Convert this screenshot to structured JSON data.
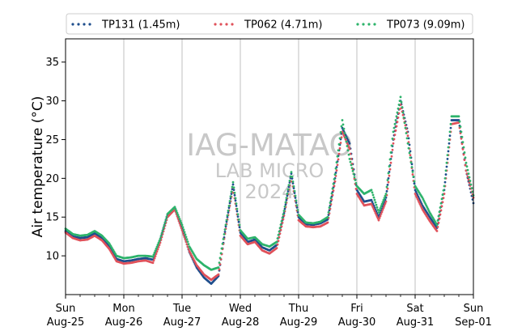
{
  "chart_data": {
    "type": "scatter",
    "xlabel": "",
    "ylabel": "Air temperature (°C)",
    "ylim": [
      5,
      38
    ],
    "xlim": [
      "2024-08-25",
      "2024-09-01"
    ],
    "x_ticks": [
      {
        "day": "Sun",
        "date": "Aug-25"
      },
      {
        "day": "Mon",
        "date": "Aug-26"
      },
      {
        "day": "Tue",
        "date": "Aug-27"
      },
      {
        "day": "Wed",
        "date": "Aug-28"
      },
      {
        "day": "Thu",
        "date": "Aug-29"
      },
      {
        "day": "Fri",
        "date": "Aug-30"
      },
      {
        "day": "Sat",
        "date": "Aug-31"
      },
      {
        "day": "Sun",
        "date": "Sep-01"
      }
    ],
    "y_ticks": [
      10,
      15,
      20,
      25,
      30,
      35
    ],
    "grid": "vertical",
    "legend_position": "top",
    "watermark": [
      "IAG-MATAO",
      "LAB MICRO",
      "2024"
    ],
    "series": [
      {
        "name": "TP131 (1.45m)",
        "color": "#1f4e8c",
        "points": [
          [
            "2024-08-25 00:00",
            13.2
          ],
          [
            "2024-08-25 03:00",
            12.5
          ],
          [
            "2024-08-25 06:00",
            12.3
          ],
          [
            "2024-08-25 09:00",
            12.4
          ],
          [
            "2024-08-25 12:00",
            12.9
          ],
          [
            "2024-08-25 15:00",
            12.3
          ],
          [
            "2024-08-25 18:00",
            11.2
          ],
          [
            "2024-08-25 21:00",
            9.6
          ],
          [
            "2024-08-26 00:00",
            9.3
          ],
          [
            "2024-08-26 03:00",
            9.4
          ],
          [
            "2024-08-26 06:00",
            9.6
          ],
          [
            "2024-08-26 09:00",
            9.7
          ],
          [
            "2024-08-26 12:00",
            9.5
          ],
          [
            "2024-08-26 15:00",
            12.0
          ],
          [
            "2024-08-26 18:00",
            15.3
          ],
          [
            "2024-08-26 21:00",
            16.2
          ],
          [
            "2024-08-27 00:00",
            13.5
          ],
          [
            "2024-08-27 03:00",
            10.5
          ],
          [
            "2024-08-27 06:00",
            8.5
          ],
          [
            "2024-08-27 09:00",
            7.2
          ],
          [
            "2024-08-27 12:00",
            6.4
          ],
          [
            "2024-08-27 15:00",
            7.4
          ],
          [
            "2024-08-27 18:00",
            13.8
          ],
          [
            "2024-08-27 21:00",
            19.2
          ],
          [
            "2024-08-28 00:00",
            13.0
          ],
          [
            "2024-08-28 03:00",
            11.8
          ],
          [
            "2024-08-28 06:00",
            12.1
          ],
          [
            "2024-08-28 09:00",
            11.1
          ],
          [
            "2024-08-28 12:00",
            10.7
          ],
          [
            "2024-08-28 15:00",
            11.4
          ],
          [
            "2024-08-28 18:00",
            15.5
          ],
          [
            "2024-08-28 21:00",
            20.6
          ],
          [
            "2024-08-29 00:00",
            15.0
          ],
          [
            "2024-08-29 03:00",
            14.1
          ],
          [
            "2024-08-29 06:00",
            14.0
          ],
          [
            "2024-08-29 09:00",
            14.2
          ],
          [
            "2024-08-29 12:00",
            14.7
          ],
          [
            "2024-08-29 15:00",
            20.0
          ],
          [
            "2024-08-29 18:00",
            26.5
          ],
          [
            "2024-08-29 21:00",
            24.5
          ],
          [
            "2024-08-30 00:00",
            18.5
          ],
          [
            "2024-08-30 03:00",
            17.0
          ],
          [
            "2024-08-30 06:00",
            17.2
          ],
          [
            "2024-08-30 09:00",
            15.0
          ],
          [
            "2024-08-30 12:00",
            17.5
          ],
          [
            "2024-08-30 15:00",
            25.0
          ],
          [
            "2024-08-30 18:00",
            30.0
          ],
          [
            "2024-08-30 21:00",
            26.0
          ],
          [
            "2024-08-31 00:00",
            18.5
          ],
          [
            "2024-08-31 03:00",
            16.5
          ],
          [
            "2024-08-31 06:00",
            15.0
          ],
          [
            "2024-08-31 09:00",
            13.6
          ],
          [
            "2024-08-31 12:00",
            18.5
          ],
          [
            "2024-08-31 15:00",
            27.5
          ],
          [
            "2024-08-31 18:00",
            27.5
          ],
          [
            "2024-08-31 21:00",
            21.0
          ],
          [
            "2024-09-01 00:00",
            16.8
          ]
        ]
      },
      {
        "name": "TP062 (4.71m)",
        "color": "#e0515a",
        "points": [
          [
            "2024-08-25 00:00",
            13.0
          ],
          [
            "2024-08-25 03:00",
            12.3
          ],
          [
            "2024-08-25 06:00",
            12.0
          ],
          [
            "2024-08-25 09:00",
            12.1
          ],
          [
            "2024-08-25 12:00",
            12.6
          ],
          [
            "2024-08-25 15:00",
            12.0
          ],
          [
            "2024-08-25 18:00",
            10.9
          ],
          [
            "2024-08-25 21:00",
            9.3
          ],
          [
            "2024-08-26 00:00",
            9.0
          ],
          [
            "2024-08-26 03:00",
            9.1
          ],
          [
            "2024-08-26 06:00",
            9.3
          ],
          [
            "2024-08-26 09:00",
            9.4
          ],
          [
            "2024-08-26 12:00",
            9.1
          ],
          [
            "2024-08-26 15:00",
            11.7
          ],
          [
            "2024-08-26 18:00",
            15.0
          ],
          [
            "2024-08-26 21:00",
            16.0
          ],
          [
            "2024-08-27 00:00",
            13.3
          ],
          [
            "2024-08-27 03:00",
            10.6
          ],
          [
            "2024-08-27 06:00",
            8.8
          ],
          [
            "2024-08-27 09:00",
            7.6
          ],
          [
            "2024-08-27 12:00",
            6.9
          ],
          [
            "2024-08-27 15:00",
            7.6
          ],
          [
            "2024-08-27 18:00",
            13.5
          ],
          [
            "2024-08-27 21:00",
            18.8
          ],
          [
            "2024-08-28 00:00",
            12.6
          ],
          [
            "2024-08-28 03:00",
            11.5
          ],
          [
            "2024-08-28 06:00",
            11.8
          ],
          [
            "2024-08-28 09:00",
            10.7
          ],
          [
            "2024-08-28 12:00",
            10.3
          ],
          [
            "2024-08-28 15:00",
            11.0
          ],
          [
            "2024-08-28 18:00",
            15.2
          ],
          [
            "2024-08-28 21:00",
            20.2
          ],
          [
            "2024-08-29 00:00",
            14.6
          ],
          [
            "2024-08-29 03:00",
            13.8
          ],
          [
            "2024-08-29 06:00",
            13.7
          ],
          [
            "2024-08-29 09:00",
            13.8
          ],
          [
            "2024-08-29 12:00",
            14.3
          ],
          [
            "2024-08-29 15:00",
            19.6
          ],
          [
            "2024-08-29 18:00",
            26.0
          ],
          [
            "2024-08-29 21:00",
            23.8
          ],
          [
            "2024-08-30 00:00",
            18.0
          ],
          [
            "2024-08-30 03:00",
            16.5
          ],
          [
            "2024-08-30 06:00",
            16.7
          ],
          [
            "2024-08-30 09:00",
            14.6
          ],
          [
            "2024-08-30 12:00",
            17.0
          ],
          [
            "2024-08-30 15:00",
            24.5
          ],
          [
            "2024-08-30 18:00",
            29.5
          ],
          [
            "2024-08-30 21:00",
            25.5
          ],
          [
            "2024-08-31 00:00",
            18.0
          ],
          [
            "2024-08-31 03:00",
            16.0
          ],
          [
            "2024-08-31 06:00",
            14.5
          ],
          [
            "2024-08-31 09:00",
            13.2
          ],
          [
            "2024-08-31 12:00",
            18.0
          ],
          [
            "2024-08-31 15:00",
            27.0
          ],
          [
            "2024-08-31 18:00",
            27.2
          ],
          [
            "2024-08-31 21:00",
            21.0
          ],
          [
            "2024-09-01 00:00",
            17.5
          ]
        ]
      },
      {
        "name": "TP073 (9.09m)",
        "color": "#2db36b",
        "points": [
          [
            "2024-08-25 00:00",
            13.5
          ],
          [
            "2024-08-25 03:00",
            12.8
          ],
          [
            "2024-08-25 06:00",
            12.6
          ],
          [
            "2024-08-25 09:00",
            12.7
          ],
          [
            "2024-08-25 12:00",
            13.2
          ],
          [
            "2024-08-25 15:00",
            12.6
          ],
          [
            "2024-08-25 18:00",
            11.6
          ],
          [
            "2024-08-25 21:00",
            10.0
          ],
          [
            "2024-08-26 00:00",
            9.7
          ],
          [
            "2024-08-26 03:00",
            9.8
          ],
          [
            "2024-08-26 06:00",
            10.0
          ],
          [
            "2024-08-26 09:00",
            10.0
          ],
          [
            "2024-08-26 12:00",
            9.9
          ],
          [
            "2024-08-26 15:00",
            12.2
          ],
          [
            "2024-08-26 18:00",
            15.4
          ],
          [
            "2024-08-26 21:00",
            16.3
          ],
          [
            "2024-08-27 00:00",
            14.0
          ],
          [
            "2024-08-27 03:00",
            11.2
          ],
          [
            "2024-08-27 06:00",
            9.6
          ],
          [
            "2024-08-27 09:00",
            8.8
          ],
          [
            "2024-08-27 12:00",
            8.2
          ],
          [
            "2024-08-27 15:00",
            8.5
          ],
          [
            "2024-08-27 18:00",
            14.0
          ],
          [
            "2024-08-27 21:00",
            19.5
          ],
          [
            "2024-08-28 00:00",
            13.3
          ],
          [
            "2024-08-28 03:00",
            12.2
          ],
          [
            "2024-08-28 06:00",
            12.4
          ],
          [
            "2024-08-28 09:00",
            11.5
          ],
          [
            "2024-08-28 12:00",
            11.2
          ],
          [
            "2024-08-28 15:00",
            11.8
          ],
          [
            "2024-08-28 18:00",
            15.8
          ],
          [
            "2024-08-28 21:00",
            20.8
          ],
          [
            "2024-08-29 00:00",
            15.3
          ],
          [
            "2024-08-29 03:00",
            14.3
          ],
          [
            "2024-08-29 06:00",
            14.2
          ],
          [
            "2024-08-29 09:00",
            14.4
          ],
          [
            "2024-08-29 12:00",
            15.0
          ],
          [
            "2024-08-29 15:00",
            20.5
          ],
          [
            "2024-08-29 18:00",
            27.5
          ],
          [
            "2024-08-29 21:00",
            22.5
          ],
          [
            "2024-08-30 00:00",
            19.0
          ],
          [
            "2024-08-30 03:00",
            18.0
          ],
          [
            "2024-08-30 06:00",
            18.5
          ],
          [
            "2024-08-30 09:00",
            15.6
          ],
          [
            "2024-08-30 12:00",
            18.0
          ],
          [
            "2024-08-30 15:00",
            26.0
          ],
          [
            "2024-08-30 18:00",
            30.5
          ],
          [
            "2024-08-30 21:00",
            24.5
          ],
          [
            "2024-08-31 00:00",
            19.0
          ],
          [
            "2024-08-31 03:00",
            17.5
          ],
          [
            "2024-08-31 06:00",
            15.6
          ],
          [
            "2024-08-31 09:00",
            14.0
          ],
          [
            "2024-08-31 12:00",
            19.0
          ],
          [
            "2024-08-31 15:00",
            28.0
          ],
          [
            "2024-08-31 18:00",
            28.0
          ],
          [
            "2024-08-31 21:00",
            22.0
          ],
          [
            "2024-09-01 00:00",
            17.8
          ]
        ]
      }
    ]
  }
}
